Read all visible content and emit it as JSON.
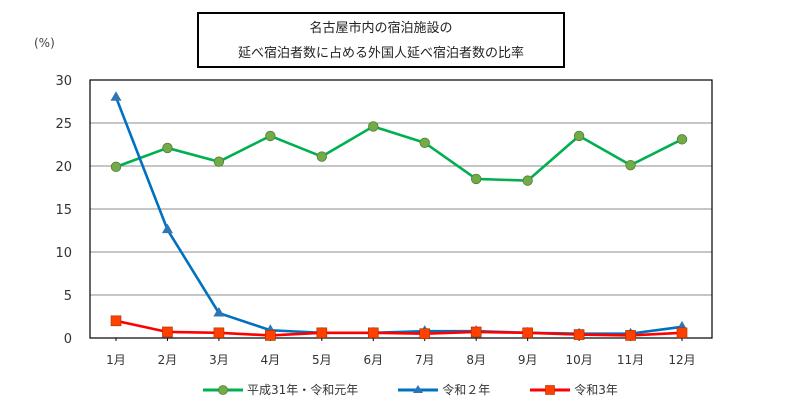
{
  "chart_data": {
    "type": "line",
    "title": "名古屋市内の宿泊施設の延べ宿泊者数に占める外国人延べ宿泊者数の比率",
    "title_lines": [
      "名古屋市内の宿泊施設の",
      "延べ宿泊者数に占める外国人延べ宿泊者数の比率"
    ],
    "xlabel": "",
    "ylabel": "(%)",
    "ylim": [
      0,
      30
    ],
    "yticks": [
      0,
      5,
      10,
      15,
      20,
      25,
      30
    ],
    "grid": true,
    "legend_position": "bottom",
    "categories": [
      "1月",
      "2月",
      "3月",
      "4月",
      "5月",
      "6月",
      "7月",
      "8月",
      "9月",
      "10月",
      "11月",
      "12月"
    ],
    "series": [
      {
        "name": "平成31年・令和元年",
        "color": "#00b050",
        "marker": "circle",
        "marker_color": "#70ad47",
        "values": [
          19.9,
          22.1,
          20.5,
          23.5,
          21.1,
          24.6,
          22.7,
          18.5,
          18.3,
          23.5,
          20.1,
          23.1
        ]
      },
      {
        "name": "令和２年",
        "color": "#0070c0",
        "marker": "triangle",
        "marker_color": "#2e75b6",
        "values": [
          28.0,
          12.6,
          2.9,
          0.9,
          0.6,
          0.6,
          0.8,
          0.8,
          0.6,
          0.5,
          0.5,
          1.3
        ]
      },
      {
        "name": "令和3年",
        "color": "#ff0000",
        "marker": "square",
        "marker_color": "#ff4000",
        "values": [
          2.0,
          0.7,
          0.6,
          0.3,
          0.6,
          0.6,
          0.5,
          0.7,
          0.6,
          0.4,
          0.3,
          0.6
        ]
      }
    ]
  },
  "labels": {
    "unit": "(%)",
    "legend": [
      "平成31年・令和元年",
      "令和２年",
      "令和3年"
    ]
  }
}
